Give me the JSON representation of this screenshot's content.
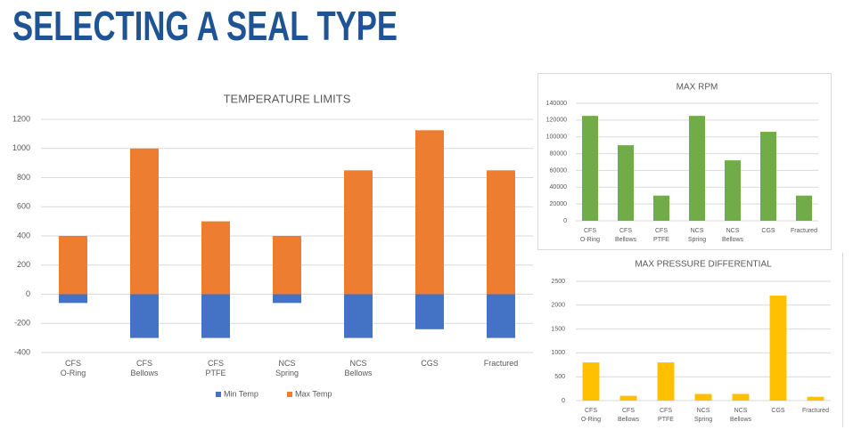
{
  "title": "SELECTING A SEAL TYPE",
  "chart_data": [
    {
      "type": "bar",
      "title": "TEMPERATURE LIMITS",
      "stacked": true,
      "legend": "bottom",
      "grid": true,
      "categories": [
        "CFS\nO-Ring",
        "CFS\nBellows",
        "CFS\nPTFE",
        "NCS\nSpring",
        "NCS\nBellows",
        "CGS",
        "Fractured"
      ],
      "series": [
        {
          "name": "Min Temp",
          "color": "#4472c4",
          "values": [
            -60,
            -300,
            -300,
            -60,
            -300,
            -240,
            -300
          ]
        },
        {
          "name": "Max Temp",
          "color": "#ed7d31",
          "values": [
            400,
            1000,
            500,
            400,
            850,
            1125,
            850
          ]
        }
      ],
      "ylim": [
        -400,
        1200
      ],
      "yticks": [
        -400,
        -200,
        0,
        200,
        400,
        600,
        800,
        1000,
        1200
      ]
    },
    {
      "type": "bar",
      "title": "MAX RPM",
      "grid": true,
      "color": "#70ad47",
      "categories": [
        "CFS\nO-Ring",
        "CFS\nBellows",
        "CFS\nPTFE",
        "NCS\nSpring",
        "NCS\nBellows",
        "CGS",
        "Fractured"
      ],
      "values": [
        125000,
        90000,
        30000,
        125000,
        72000,
        106000,
        30000
      ],
      "ylim": [
        0,
        140000
      ],
      "yticks": [
        0,
        20000,
        40000,
        60000,
        80000,
        100000,
        120000,
        140000
      ]
    },
    {
      "type": "bar",
      "title": "MAX PRESSURE DIFFERENTIAL",
      "grid": true,
      "color": "#ffc000",
      "categories": [
        "CFS\nO-Ring",
        "CFS\nBellows",
        "CFS\nPTFE",
        "NCS\nSpring",
        "NCS\nBellows",
        "CGS",
        "Fractured"
      ],
      "values": [
        800,
        100,
        800,
        140,
        140,
        2200,
        80
      ],
      "ylim": [
        0,
        2500
      ],
      "yticks": [
        0,
        500,
        1000,
        1500,
        2000,
        2500
      ]
    }
  ]
}
